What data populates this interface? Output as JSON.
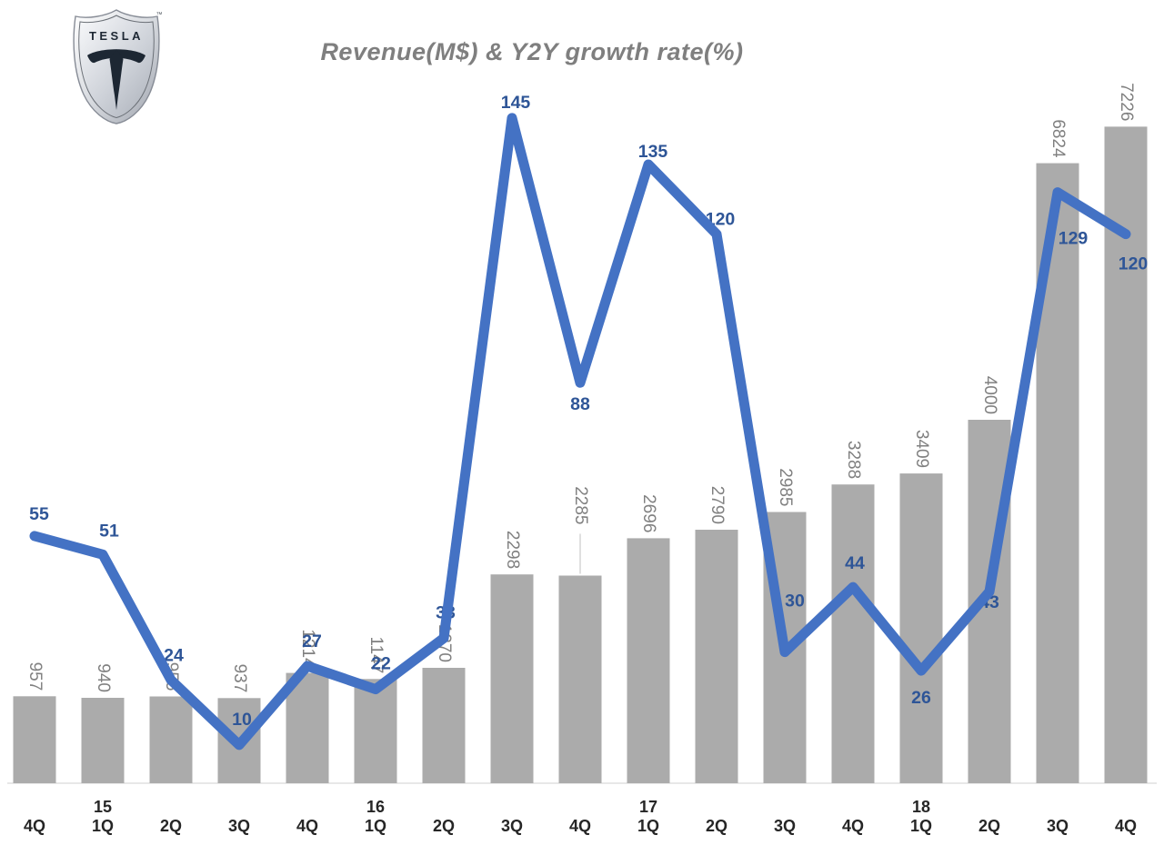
{
  "logo": {
    "brand": "TESLA",
    "trademark": "™"
  },
  "chart_data": {
    "type": "bar",
    "title": "Revenue(M$) & Y2Y growth rate(%)",
    "title_color": "#7f7f7f",
    "categories": [
      "4Q",
      "1Q",
      "2Q",
      "3Q",
      "4Q",
      "1Q",
      "2Q",
      "3Q",
      "4Q",
      "1Q",
      "2Q",
      "3Q",
      "4Q",
      "1Q",
      "2Q",
      "3Q",
      "4Q"
    ],
    "year_labels": [
      {
        "label": "15",
        "category_index": 1
      },
      {
        "label": "16",
        "category_index": 5
      },
      {
        "label": "17",
        "category_index": 9
      },
      {
        "label": "18",
        "category_index": 13
      }
    ],
    "series": [
      {
        "name": "Revenue(M$)",
        "type": "bar",
        "color": "#ababab",
        "label_color": "#808080",
        "values": [
          957,
          940,
          955,
          937,
          1214,
          1147,
          1270,
          2298,
          2285,
          2696,
          2790,
          2985,
          3288,
          3409,
          4000,
          6824,
          7226
        ]
      },
      {
        "name": "Y2Y growth rate(%)",
        "type": "line",
        "color": "#4472c4",
        "label_color": "#2e5597",
        "values": [
          55,
          51,
          24,
          10,
          27,
          22,
          33,
          145,
          88,
          135,
          120,
          30,
          44,
          26,
          43,
          129,
          120
        ]
      }
    ],
    "axis_label_color": "#262626",
    "baseline_color": "#d9d9d9",
    "leader_line_color": "#c0c0c0",
    "grid": false,
    "legend": "none",
    "value_axis": "hidden"
  }
}
